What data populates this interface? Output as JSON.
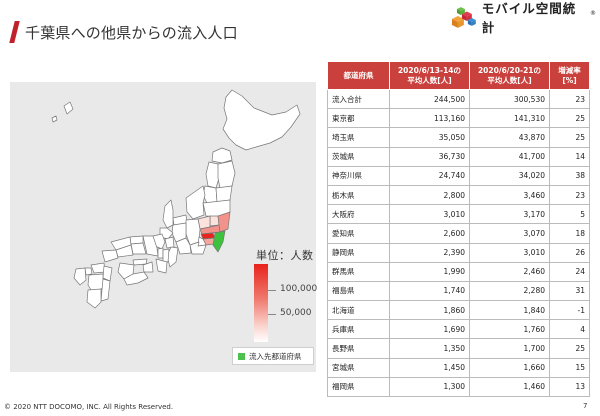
{
  "header": {
    "title": "千葉県への他県からの流入人口",
    "logo_text": "モバイル空間統計",
    "logo_mark_icon": "stacked-cubes-icon",
    "logo_registered": "®"
  },
  "map": {
    "scale_title": "単位：人数",
    "scale_labels": [
      "100,000",
      "50,000"
    ],
    "legend_label": "流入先都道府県",
    "colors": {
      "background": "#e9e9e9",
      "prefecture_fill": "#ffffff",
      "destination": "#3cc23c",
      "high": "#e8231b",
      "mid": "#f4a59c",
      "low": "#fde6e2"
    }
  },
  "table": {
    "headers": [
      "都道府県",
      "2020/6/13-14の\n平均人数[人]",
      "2020/6/20-21の\n平均人数[人]",
      "増減率\n[%]"
    ],
    "rows": [
      [
        "流入合計",
        "244,500",
        "300,530",
        "23"
      ],
      [
        "東京都",
        "113,160",
        "141,310",
        "25"
      ],
      [
        "埼玉県",
        "35,050",
        "43,870",
        "25"
      ],
      [
        "茨城県",
        "36,730",
        "41,700",
        "14"
      ],
      [
        "神奈川県",
        "24,740",
        "34,020",
        "38"
      ],
      [
        "栃木県",
        "2,800",
        "3,460",
        "23"
      ],
      [
        "大阪府",
        "3,010",
        "3,170",
        "5"
      ],
      [
        "愛知県",
        "2,600",
        "3,070",
        "18"
      ],
      [
        "静岡県",
        "2,390",
        "3,010",
        "26"
      ],
      [
        "群馬県",
        "1,990",
        "2,460",
        "24"
      ],
      [
        "福島県",
        "1,740",
        "2,280",
        "31"
      ],
      [
        "北海道",
        "1,860",
        "1,840",
        "-1"
      ],
      [
        "兵庫県",
        "1,690",
        "1,760",
        "4"
      ],
      [
        "長野県",
        "1,350",
        "1,700",
        "25"
      ],
      [
        "宮城県",
        "1,450",
        "1,660",
        "15"
      ],
      [
        "福岡県",
        "1,300",
        "1,460",
        "13"
      ]
    ]
  },
  "footer": {
    "copyright": "© 2020 NTT DOCOMO, INC. All Rights Reserved.",
    "page_number": "7"
  }
}
